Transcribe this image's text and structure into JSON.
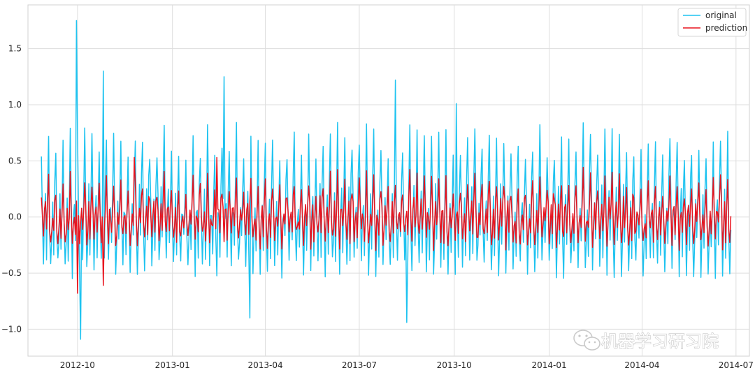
{
  "chart_data": {
    "type": "line",
    "title": "",
    "xlabel": "",
    "ylabel": "",
    "x_start": "2012-08-27",
    "x_end": "2014-06-26",
    "xlim": [
      "2012-08-14",
      "2014-07-14"
    ],
    "ylim": [
      -1.24,
      1.89
    ],
    "grid": true,
    "legend_position": "top-right",
    "x_ticks": [
      {
        "date": "2012-10-01",
        "label": "2012-10"
      },
      {
        "date": "2013-01-01",
        "label": "2013-01"
      },
      {
        "date": "2013-04-01",
        "label": "2013-04"
      },
      {
        "date": "2013-07-01",
        "label": "2013-07"
      },
      {
        "date": "2013-10-01",
        "label": "2013-10"
      },
      {
        "date": "2014-01-01",
        "label": "2014-01"
      },
      {
        "date": "2014-04-01",
        "label": "2014-04"
      },
      {
        "date": "2014-07-01",
        "label": "2014-07"
      }
    ],
    "y_ticks": [
      {
        "value": -1.0,
        "label": "−1.0"
      },
      {
        "value": -0.5,
        "label": "−0.5"
      },
      {
        "value": 0.0,
        "label": "0.0"
      },
      {
        "value": 0.5,
        "label": "0.5"
      },
      {
        "value": 1.0,
        "label": "1.0"
      },
      {
        "value": 1.5,
        "label": "1.5"
      }
    ],
    "series": [
      {
        "name": "original",
        "color": "#1ec3f0",
        "summary": "daily series, roughly weekly oscillation between about -0.6 and 0.8",
        "peaks": [
          [
            "2012-09-30",
            1.75
          ],
          [
            "2012-10-04",
            -1.09
          ],
          [
            "2012-10-26",
            1.3
          ],
          [
            "2013-02-20",
            1.25
          ],
          [
            "2013-08-05",
            1.22
          ],
          [
            "2013-08-16",
            -0.94
          ],
          [
            "2013-10-03",
            1.01
          ],
          [
            "2013-03-17",
            -0.9
          ]
        ]
      },
      {
        "name": "prediction",
        "color": "#e8141e",
        "summary": "daily series, roughly weekly oscillation between about -0.35 and 0.5",
        "peaks": [
          [
            "2012-10-01",
            -0.68
          ],
          [
            "2012-11-25",
            0.53
          ],
          [
            "2013-02-13",
            0.53
          ],
          [
            "2012-10-26",
            -0.61
          ]
        ]
      }
    ]
  },
  "watermark": {
    "text": "机器学习研习院",
    "icon": "wechat-icon"
  }
}
